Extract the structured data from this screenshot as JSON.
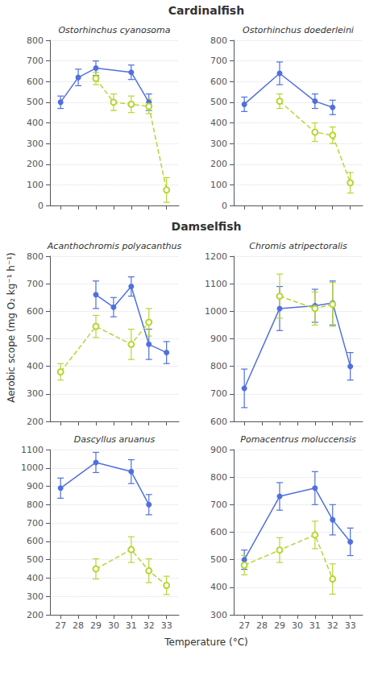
{
  "chart_data": [
    {
      "type": "line",
      "title": "Ostorhinchus cyanosoma",
      "annotations": [
        "Cardinalfish"
      ],
      "xlim": [
        26.4,
        33.7
      ],
      "xticks": [
        27,
        28,
        29,
        30,
        31,
        32,
        33
      ],
      "ylim": [
        0,
        800
      ],
      "yticks": [
        0,
        100,
        200,
        300,
        400,
        500,
        600,
        700,
        800
      ],
      "grid": true,
      "tick_labels": "y",
      "series": [
        {
          "line_style": "solid",
          "marker": "filled",
          "x": [
            27,
            28,
            29,
            31,
            32
          ],
          "values": [
            500,
            620,
            665,
            645,
            500
          ],
          "errors": [
            30,
            40,
            35,
            35,
            40
          ]
        },
        {
          "line_style": "dashed",
          "marker": "open",
          "x": [
            29,
            30,
            31,
            32,
            33
          ],
          "values": [
            615,
            500,
            490,
            480,
            75
          ],
          "errors": [
            30,
            40,
            40,
            35,
            60
          ]
        }
      ]
    },
    {
      "type": "line",
      "title": "Ostorhinchus doederleini",
      "xlim": [
        26.4,
        33.7
      ],
      "xticks": [
        27,
        28,
        29,
        30,
        31,
        32,
        33
      ],
      "ylim": [
        0,
        800
      ],
      "yticks": [
        0,
        100,
        200,
        300,
        400,
        500,
        600,
        700,
        800
      ],
      "grid": true,
      "tick_labels": "y",
      "series": [
        {
          "line_style": "solid",
          "marker": "filled",
          "x": [
            27,
            29,
            31,
            32
          ],
          "values": [
            490,
            640,
            505,
            475
          ],
          "errors": [
            35,
            55,
            35,
            35
          ]
        },
        {
          "line_style": "dashed",
          "marker": "open",
          "x": [
            29,
            31,
            32,
            33
          ],
          "values": [
            505,
            355,
            340,
            110
          ],
          "errors": [
            35,
            45,
            40,
            50
          ]
        }
      ]
    },
    {
      "type": "line",
      "title": "Acanthochromis polyacanthus",
      "annotations": [
        "Damselfish"
      ],
      "ylabel": "Aerobic scope (mg O₂ kg⁻¹ h⁻¹)",
      "xlim": [
        26.4,
        33.7
      ],
      "xticks": [
        27,
        28,
        29,
        30,
        31,
        32,
        33
      ],
      "ylim": [
        200,
        800
      ],
      "yticks": [
        200,
        300,
        400,
        500,
        600,
        700,
        800
      ],
      "grid": true,
      "tick_labels": "y",
      "series": [
        {
          "line_style": "solid",
          "marker": "filled",
          "x": [
            29,
            30,
            31,
            32,
            33
          ],
          "values": [
            660,
            615,
            690,
            480,
            450
          ],
          "errors": [
            50,
            35,
            35,
            55,
            40
          ]
        },
        {
          "line_style": "dashed",
          "marker": "open",
          "x": [
            27,
            29,
            31,
            32
          ],
          "values": [
            380,
            545,
            480,
            560
          ],
          "errors": [
            30,
            40,
            55,
            50
          ]
        }
      ]
    },
    {
      "type": "line",
      "title": "Chromis atripectoralis",
      "xlim": [
        26.4,
        33.7
      ],
      "xticks": [
        27,
        28,
        29,
        30,
        31,
        32,
        33
      ],
      "ylim": [
        600,
        1200
      ],
      "yticks": [
        600,
        700,
        800,
        900,
        1000,
        1100,
        1200
      ],
      "grid": true,
      "tick_labels": "y",
      "series": [
        {
          "line_style": "solid",
          "marker": "filled",
          "x": [
            27,
            29,
            31,
            32,
            33
          ],
          "values": [
            720,
            1010,
            1020,
            1030,
            800
          ],
          "errors": [
            70,
            80,
            60,
            80,
            50
          ]
        },
        {
          "line_style": "dashed",
          "marker": "open",
          "x": [
            29,
            31,
            32
          ],
          "values": [
            1055,
            1010,
            1025
          ],
          "errors": [
            80,
            60,
            80
          ]
        }
      ]
    },
    {
      "type": "line",
      "title": "Dascyllus aruanus",
      "xlabel": "Temperature (°C)",
      "xlim": [
        26.4,
        33.7
      ],
      "xticks": [
        27,
        28,
        29,
        30,
        31,
        32,
        33
      ],
      "ylim": [
        200,
        1100
      ],
      "yticks": [
        200,
        300,
        400,
        500,
        600,
        700,
        800,
        900,
        1000,
        1100
      ],
      "grid": true,
      "series": [
        {
          "line_style": "solid",
          "marker": "filled",
          "x": [
            27,
            29,
            31,
            32
          ],
          "values": [
            890,
            1030,
            980,
            800
          ],
          "errors": [
            55,
            55,
            65,
            55
          ]
        },
        {
          "line_style": "dashed",
          "marker": "open",
          "x": [
            29,
            31,
            32,
            33
          ],
          "values": [
            450,
            555,
            440,
            360
          ],
          "errors": [
            55,
            70,
            65,
            50
          ]
        }
      ]
    },
    {
      "type": "line",
      "title": "Pomacentrus moluccensis",
      "xlim": [
        26.4,
        33.7
      ],
      "xticks": [
        27,
        28,
        29,
        30,
        31,
        32,
        33
      ],
      "ylim": [
        300,
        900
      ],
      "yticks": [
        300,
        400,
        500,
        600,
        700,
        800,
        900
      ],
      "grid": true,
      "series": [
        {
          "line_style": "solid",
          "marker": "filled",
          "x": [
            27,
            29,
            31,
            32,
            33
          ],
          "values": [
            500,
            730,
            760,
            645,
            565
          ],
          "errors": [
            35,
            50,
            60,
            55,
            50
          ]
        },
        {
          "line_style": "dashed",
          "marker": "open",
          "x": [
            27,
            29,
            31,
            32
          ],
          "values": [
            480,
            535,
            590,
            430
          ],
          "errors": [
            35,
            45,
            50,
            55
          ]
        }
      ]
    }
  ]
}
